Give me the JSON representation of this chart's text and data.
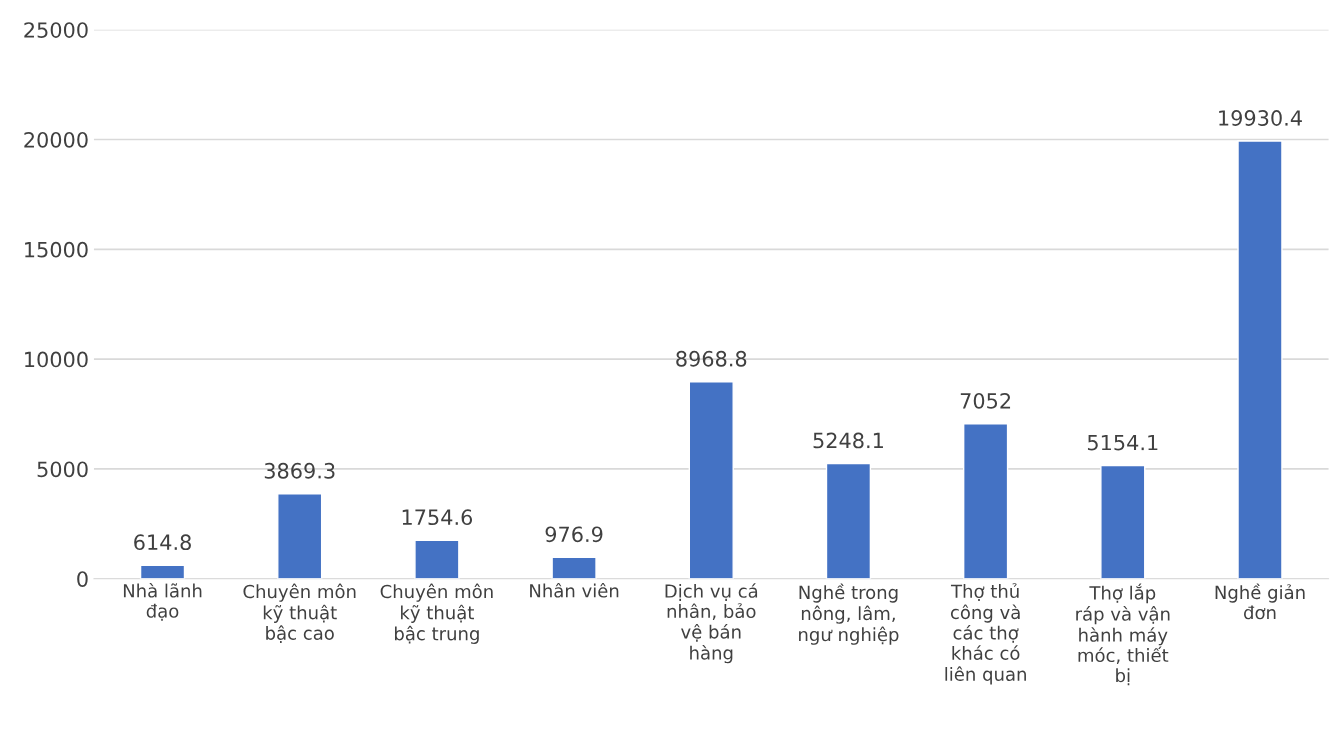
{
  "chart_data": {
    "type": "bar",
    "categories": [
      "Nhà lãnh đạo",
      "Chuyên môn kỹ thuật bậc cao",
      "Chuyên môn kỹ thuật bậc trung",
      "Nhân viên",
      "Dịch vụ cá nhân, bảo vệ bán hàng",
      "Nghề trong nông, lâm, ngư nghiệp",
      "Thợ thủ công và các thợ khác có liên quan",
      "Thợ lắp ráp và vận hành máy móc, thiết bị",
      "Nghề giản đơn"
    ],
    "values": [
      614.8,
      3869.3,
      1754.6,
      976.9,
      8968.8,
      5248.1,
      7052,
      5154.1,
      19930.4
    ],
    "color": "#4472c4",
    "ylim": [
      0,
      25000
    ],
    "yticks": [
      0,
      5000,
      10000,
      15000,
      20000,
      25000
    ],
    "grid": "y",
    "data_labels": true
  }
}
